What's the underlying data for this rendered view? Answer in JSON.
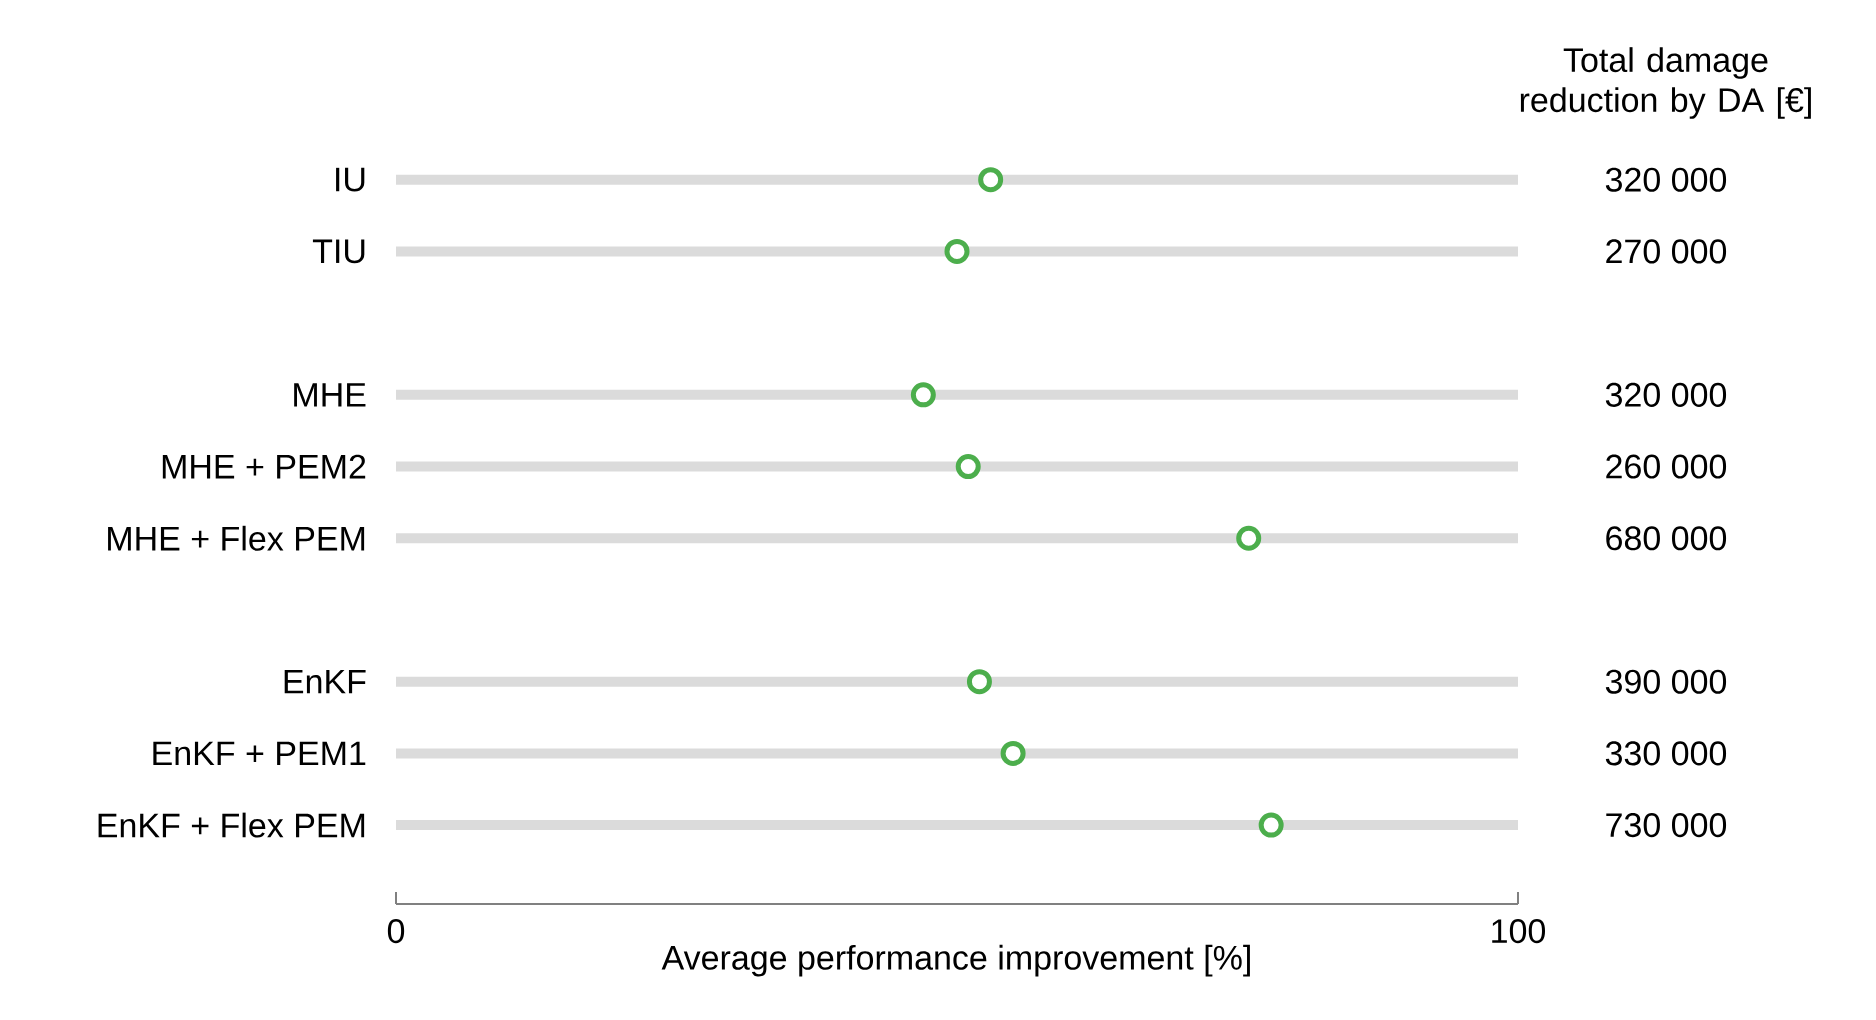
{
  "chart_data": {
    "type": "scatter",
    "orientation": "horizontal",
    "categories": [
      "IU",
      "TIU",
      null,
      "MHE",
      "MHE + PEM2",
      "MHE + Flex PEM",
      null,
      "EnKF",
      "EnKF + PEM1",
      "EnKF + Flex PEM"
    ],
    "values": [
      53,
      50,
      null,
      47,
      51,
      76,
      null,
      52,
      55,
      78
    ],
    "color": "#4cae4c",
    "marker": "circle",
    "grid": "y",
    "xlim": [
      0,
      100
    ],
    "xticks": [
      0,
      100
    ],
    "xlabel": "Average performance improvement [%]",
    "y2label": "Total damage reduction by DA [€]",
    "annotations": [
      "320 000",
      "270 000",
      "320 000",
      "260 000",
      "680 000",
      "390 000",
      "330 000",
      "730 000"
    ]
  }
}
